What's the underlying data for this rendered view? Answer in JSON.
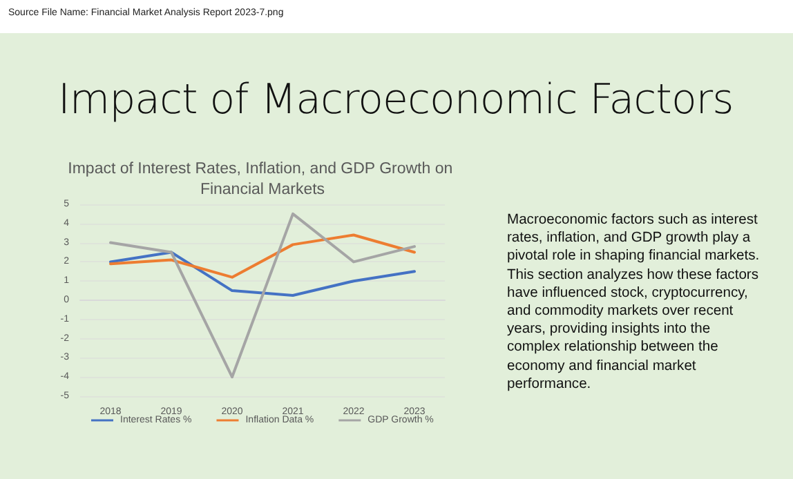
{
  "chart_data": {
    "type": "line",
    "title": "Impact of Macroeconomic Factors",
    "subtitle": "Impact of Interest Rates, Inflation, and GDP Growth on Financial Markets",
    "annotations": [
      "Source File Name: Financial Market Analysis Report 2023-7.png",
      "Macroeconomic factors such as interest rates, inflation, and GDP growth play a pivotal role in shaping financial markets. This section analyzes how these factors have influenced stock, cryptocurrency, and commodity markets over recent years, providing insights into the complex relationship between the economy and financial market performance."
    ],
    "categories": [
      "2018",
      "2019",
      "2020",
      "2021",
      "2022",
      "2023"
    ],
    "series": [
      {
        "name": "Interest Rates %",
        "color": "#4472c4",
        "values": [
          2.0,
          2.5,
          0.5,
          0.25,
          1.0,
          1.5
        ]
      },
      {
        "name": "Inflation Data %",
        "color": "#ed7d31",
        "values": [
          1.9,
          2.1,
          1.2,
          2.9,
          3.4,
          2.5
        ]
      },
      {
        "name": "GDP Growth %",
        "color": "#a5a5a5",
        "values": [
          3.0,
          2.5,
          -4.0,
          4.5,
          2.0,
          2.8
        ]
      }
    ],
    "ylim": [
      -5,
      5
    ],
    "yticks": [
      -5,
      -4,
      -3,
      -2,
      -1,
      0,
      1,
      2,
      3,
      4,
      5
    ],
    "grid": "y",
    "legend": "bottom",
    "marker": "none",
    "line_style": "solid"
  }
}
